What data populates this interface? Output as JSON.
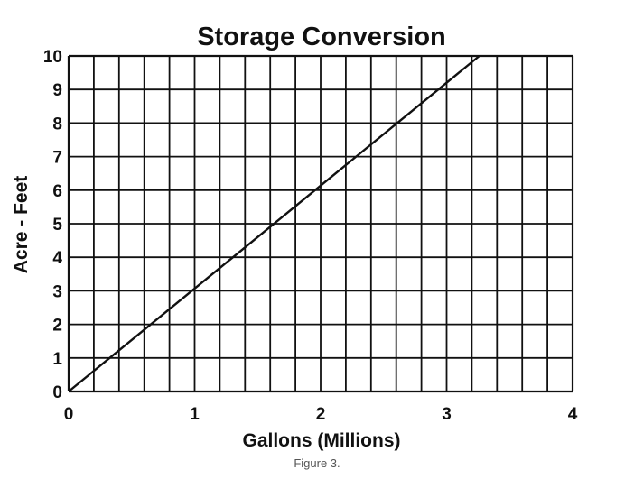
{
  "caption": "Figure 3.",
  "chart_data": {
    "type": "line",
    "title": "Storage Conversion",
    "xlabel": "Gallons (Millions)",
    "ylabel": "Acre - Feet",
    "xlim": [
      0,
      4
    ],
    "ylim": [
      0,
      10
    ],
    "x_ticks": [
      0,
      1,
      2,
      3,
      4
    ],
    "y_ticks": [
      0,
      1,
      2,
      3,
      4,
      5,
      6,
      7,
      8,
      9,
      10
    ],
    "grid": true,
    "series": [
      {
        "x": [
          0,
          3.26
        ],
        "y": [
          0,
          10
        ]
      }
    ],
    "colors": {
      "line": "#111111",
      "grid": "#111111"
    }
  }
}
